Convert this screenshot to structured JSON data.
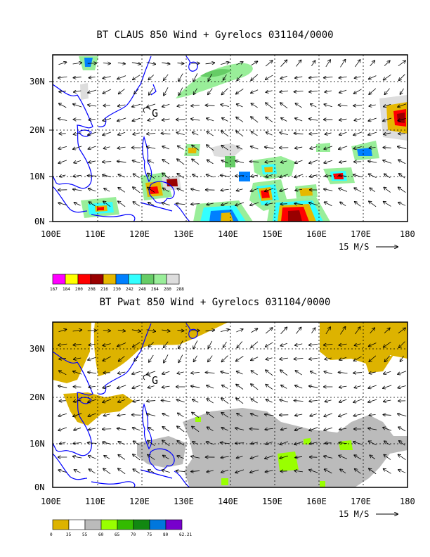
{
  "top": {
    "title": "BT CLAUS 850 Wind + Gyrelocs 031104/0000",
    "y_labels": [
      "30N",
      "20N",
      "10N",
      "0N"
    ],
    "x_labels": [
      "100E",
      "110E",
      "120E",
      "130E",
      "140E",
      "150E",
      "160E",
      "170E",
      "180"
    ],
    "vector_ref": "15 M/S",
    "gyre_marker": "G",
    "colorbar": {
      "colors": [
        "#ff00ff",
        "#ffff00",
        "#ff0000",
        "#990000",
        "#e6b800",
        "#0080ff",
        "#33ffff",
        "#66cc66",
        "#99ee99",
        "#dddddd"
      ],
      "labels": [
        "167",
        "184",
        "200",
        "208",
        "216",
        "230",
        "242",
        "248",
        "264",
        "280",
        "288"
      ]
    }
  },
  "bottom": {
    "title": "BT Pwat 850 Wind + Gyrelocs 031104/0000",
    "y_labels": [
      "30N",
      "20N",
      "10N",
      "0N"
    ],
    "x_labels": [
      "100E",
      "110E",
      "120E",
      "130E",
      "140E",
      "150E",
      "160E",
      "170E",
      "180"
    ],
    "vector_ref": "15 M/S",
    "gyre_marker": "G",
    "colorbar": {
      "colors": [
        "#ddb300",
        "#ffffff",
        "#bbbbbb",
        "#99ff00",
        "#33bb00",
        "#118811",
        "#0077dd",
        "#7700cc"
      ],
      "labels": [
        "0",
        "35",
        "55",
        "60",
        "65",
        "70",
        "75",
        "80",
        "62.21"
      ]
    }
  }
}
